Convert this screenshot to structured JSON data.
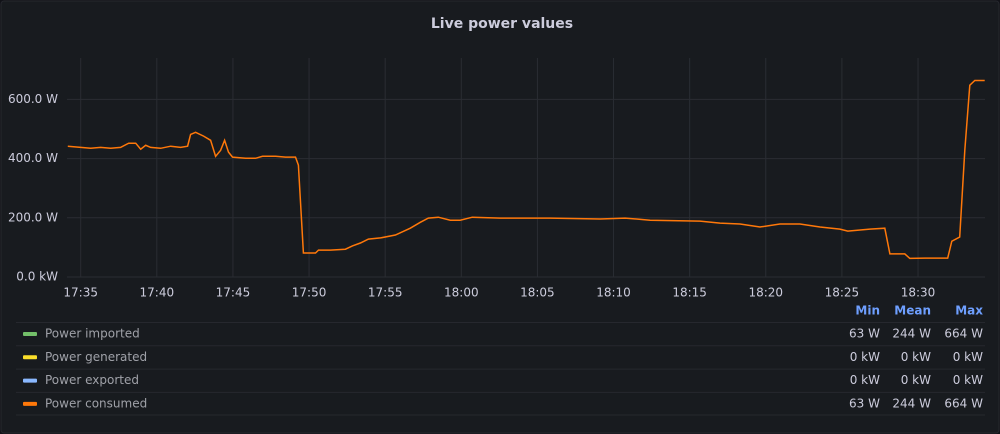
{
  "chart_data": {
    "type": "line",
    "title": "Live power values",
    "x": [
      1054.15,
      1055,
      1055.66,
      1056.31,
      1056.97,
      1057.62,
      1058.15,
      1058.61,
      1058.94,
      1059.27,
      1059.59,
      1060.25,
      1060.91,
      1061.56,
      1062.02,
      1062.22,
      1062.55,
      1063.07,
      1063.53,
      1063.86,
      1064.19,
      1064.45,
      1064.71,
      1064.97,
      1065.83,
      1066.48,
      1066.94,
      1067.8,
      1068.45,
      1069.11,
      1069.3,
      1069.63,
      1070.42,
      1070.62,
      1071.4,
      1072.39,
      1072.85,
      1073.37,
      1073.9,
      1074.69,
      1075.67,
      1076.65,
      1077.31,
      1077.83,
      1078.49,
      1079.28,
      1079.93,
      1080.72,
      1082.56,
      1085.84,
      1089.12,
      1090.76,
      1092.4,
      1095.68,
      1096.99,
      1098.31,
      1099.62,
      1100.93,
      1102.24,
      1103.56,
      1104.87,
      1105.39,
      1106.84,
      1107.82,
      1108.15,
      1109.13,
      1109.46,
      1110.45,
      1111.43,
      1111.95,
      1112.22,
      1112.74,
      1113.07,
      1113.4,
      1113.73,
      1114.38
    ],
    "stat_columns": [
      "Min",
      "Mean",
      "Max"
    ],
    "series": [
      {
        "name": "Power imported",
        "color": "#73bf69",
        "stats": [
          "63 W",
          "244 W",
          "664 W"
        ]
      },
      {
        "name": "Power generated",
        "color": "#fade2a",
        "stats": [
          "0 kW",
          "0 kW",
          "0 kW"
        ]
      },
      {
        "name": "Power exported",
        "color": "#8ab8ff",
        "stats": [
          "0 kW",
          "0 kW",
          "0 kW"
        ]
      },
      {
        "name": "Power consumed",
        "color": "#ff780a",
        "stats": [
          "63 W",
          "244 W",
          "664 W"
        ],
        "values": [
          442,
          438,
          435,
          438,
          435,
          438,
          452,
          452,
          432,
          445,
          438,
          435,
          442,
          438,
          442,
          482,
          489,
          476,
          462,
          408,
          428,
          462,
          422,
          405,
          401,
          401,
          408,
          408,
          405,
          405,
          378,
          81,
          81,
          91,
          91,
          94,
          105,
          115,
          128,
          132,
          142,
          165,
          185,
          199,
          202,
          192,
          192,
          202,
          199,
          199,
          196,
          199,
          192,
          189,
          182,
          179,
          169,
          179,
          179,
          169,
          162,
          155,
          162,
          165,
          78,
          78,
          63,
          64,
          64,
          64,
          121,
          135,
          428,
          648,
          664,
          664
        ]
      }
    ],
    "xlim": [
      1054.1,
      1114.4
    ],
    "xticks": [
      {
        "value": 1055,
        "label": "17:35"
      },
      {
        "value": 1060,
        "label": "17:40"
      },
      {
        "value": 1065,
        "label": "17:45"
      },
      {
        "value": 1070,
        "label": "17:50"
      },
      {
        "value": 1075,
        "label": "17:55"
      },
      {
        "value": 1080,
        "label": "18:00"
      },
      {
        "value": 1085,
        "label": "18:05"
      },
      {
        "value": 1090,
        "label": "18:10"
      },
      {
        "value": 1095,
        "label": "18:15"
      },
      {
        "value": 1100,
        "label": "18:20"
      },
      {
        "value": 1105,
        "label": "18:25"
      },
      {
        "value": 1110,
        "label": "18:30"
      }
    ],
    "ylim": [
      0,
      740
    ],
    "yticks": [
      {
        "value": 0,
        "label": "0.0 kW"
      },
      {
        "value": 200,
        "label": "200.0 W"
      },
      {
        "value": 400,
        "label": "400.0 W"
      },
      {
        "value": 600,
        "label": "600.0 W"
      }
    ],
    "grid": true
  }
}
